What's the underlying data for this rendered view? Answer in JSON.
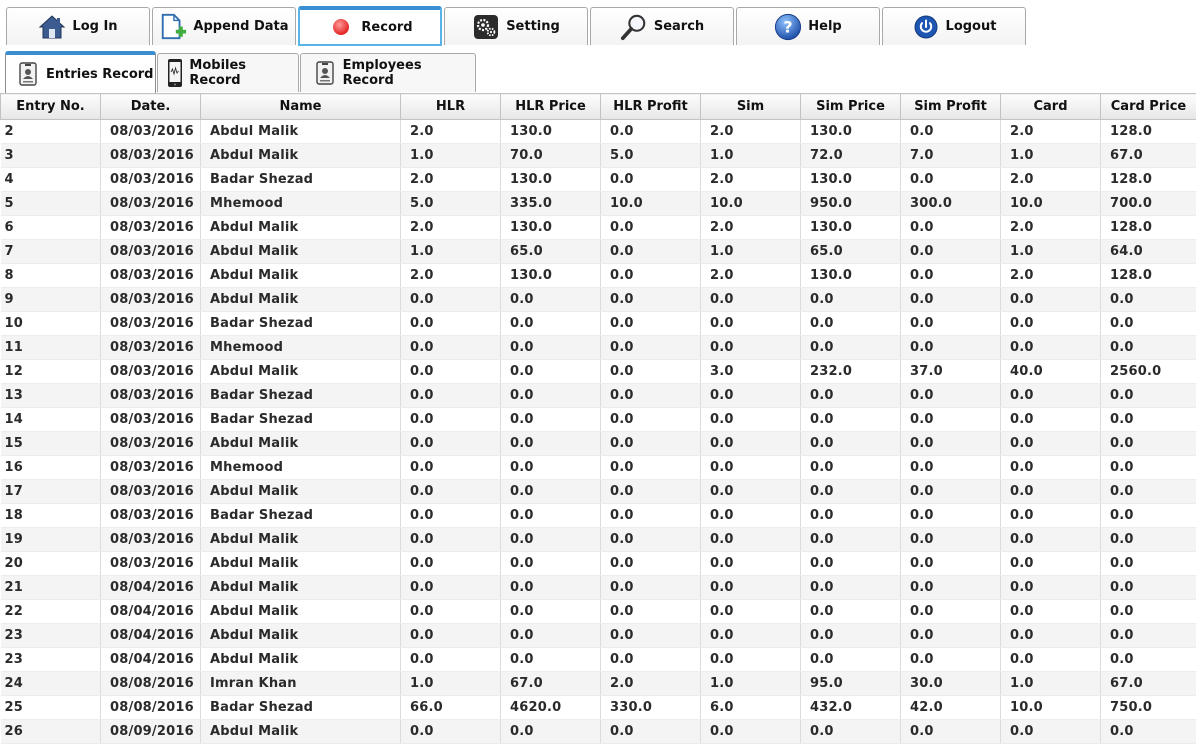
{
  "toolbar": {
    "buttons": [
      {
        "id": "login",
        "label": "Log In",
        "icon": "home-icon"
      },
      {
        "id": "append",
        "label": "Append Data",
        "icon": "document-add-icon"
      },
      {
        "id": "record",
        "label": "Record",
        "icon": "record-dot-icon",
        "active": true
      },
      {
        "id": "setting",
        "label": "Setting",
        "icon": "gears-icon"
      },
      {
        "id": "search",
        "label": "Search",
        "icon": "magnifier-icon"
      },
      {
        "id": "help",
        "label": "Help",
        "icon": "help-icon"
      },
      {
        "id": "logout",
        "label": "Logout",
        "icon": "power-icon"
      }
    ]
  },
  "subtabs": [
    {
      "id": "entries",
      "label": "Entries Record",
      "icon": "id-card-icon",
      "active": true
    },
    {
      "id": "mobiles",
      "label": "Mobiles Record",
      "icon": "mobile-phone-icon"
    },
    {
      "id": "employees",
      "label": "Employees Record",
      "icon": "id-card-icon"
    }
  ],
  "table": {
    "columns": [
      "Entry No.",
      "Date.",
      "Name",
      "HLR",
      "HLR Price",
      "HLR Profit",
      "Sim",
      "Sim Price",
      "Sim Profit",
      "Card",
      "Card Price"
    ],
    "rows": [
      [
        "2",
        "08/03/2016",
        "Abdul Malik",
        "2.0",
        "130.0",
        "0.0",
        "2.0",
        "130.0",
        "0.0",
        "2.0",
        "128.0"
      ],
      [
        "3",
        "08/03/2016",
        "Abdul Malik",
        "1.0",
        "70.0",
        "5.0",
        "1.0",
        "72.0",
        "7.0",
        "1.0",
        "67.0"
      ],
      [
        "4",
        "08/03/2016",
        "Badar Shezad",
        "2.0",
        "130.0",
        "0.0",
        "2.0",
        "130.0",
        "0.0",
        "2.0",
        "128.0"
      ],
      [
        "5",
        "08/03/2016",
        "Mhemood",
        "5.0",
        "335.0",
        "10.0",
        "10.0",
        "950.0",
        "300.0",
        "10.0",
        "700.0"
      ],
      [
        "6",
        "08/03/2016",
        "Abdul Malik",
        "2.0",
        "130.0",
        "0.0",
        "2.0",
        "130.0",
        "0.0",
        "2.0",
        "128.0"
      ],
      [
        "7",
        "08/03/2016",
        "Abdul Malik",
        "1.0",
        "65.0",
        "0.0",
        "1.0",
        "65.0",
        "0.0",
        "1.0",
        "64.0"
      ],
      [
        "8",
        "08/03/2016",
        "Abdul Malik",
        "2.0",
        "130.0",
        "0.0",
        "2.0",
        "130.0",
        "0.0",
        "2.0",
        "128.0"
      ],
      [
        "9",
        "08/03/2016",
        "Abdul Malik",
        "0.0",
        "0.0",
        "0.0",
        "0.0",
        "0.0",
        "0.0",
        "0.0",
        "0.0"
      ],
      [
        "10",
        "08/03/2016",
        "Badar Shezad",
        "0.0",
        "0.0",
        "0.0",
        "0.0",
        "0.0",
        "0.0",
        "0.0",
        "0.0"
      ],
      [
        "11",
        "08/03/2016",
        "Mhemood",
        "0.0",
        "0.0",
        "0.0",
        "0.0",
        "0.0",
        "0.0",
        "0.0",
        "0.0"
      ],
      [
        "12",
        "08/03/2016",
        "Abdul Malik",
        "0.0",
        "0.0",
        "0.0",
        "3.0",
        "232.0",
        "37.0",
        "40.0",
        "2560.0"
      ],
      [
        "13",
        "08/03/2016",
        "Badar Shezad",
        "0.0",
        "0.0",
        "0.0",
        "0.0",
        "0.0",
        "0.0",
        "0.0",
        "0.0"
      ],
      [
        "14",
        "08/03/2016",
        "Badar Shezad",
        "0.0",
        "0.0",
        "0.0",
        "0.0",
        "0.0",
        "0.0",
        "0.0",
        "0.0"
      ],
      [
        "15",
        "08/03/2016",
        "Abdul Malik",
        "0.0",
        "0.0",
        "0.0",
        "0.0",
        "0.0",
        "0.0",
        "0.0",
        "0.0"
      ],
      [
        "16",
        "08/03/2016",
        "Mhemood",
        "0.0",
        "0.0",
        "0.0",
        "0.0",
        "0.0",
        "0.0",
        "0.0",
        "0.0"
      ],
      [
        "17",
        "08/03/2016",
        "Abdul Malik",
        "0.0",
        "0.0",
        "0.0",
        "0.0",
        "0.0",
        "0.0",
        "0.0",
        "0.0"
      ],
      [
        "18",
        "08/03/2016",
        "Badar Shezad",
        "0.0",
        "0.0",
        "0.0",
        "0.0",
        "0.0",
        "0.0",
        "0.0",
        "0.0"
      ],
      [
        "19",
        "08/03/2016",
        "Abdul Malik",
        "0.0",
        "0.0",
        "0.0",
        "0.0",
        "0.0",
        "0.0",
        "0.0",
        "0.0"
      ],
      [
        "20",
        "08/03/2016",
        "Abdul Malik",
        "0.0",
        "0.0",
        "0.0",
        "0.0",
        "0.0",
        "0.0",
        "0.0",
        "0.0"
      ],
      [
        "21",
        "08/04/2016",
        "Abdul Malik",
        "0.0",
        "0.0",
        "0.0",
        "0.0",
        "0.0",
        "0.0",
        "0.0",
        "0.0"
      ],
      [
        "22",
        "08/04/2016",
        "Abdul Malik",
        "0.0",
        "0.0",
        "0.0",
        "0.0",
        "0.0",
        "0.0",
        "0.0",
        "0.0"
      ],
      [
        "23",
        "08/04/2016",
        "Abdul Malik",
        "0.0",
        "0.0",
        "0.0",
        "0.0",
        "0.0",
        "0.0",
        "0.0",
        "0.0"
      ],
      [
        "23",
        "08/04/2016",
        "Abdul Malik",
        "0.0",
        "0.0",
        "0.0",
        "0.0",
        "0.0",
        "0.0",
        "0.0",
        "0.0"
      ],
      [
        "24",
        "08/08/2016",
        "Imran Khan",
        "1.0",
        "67.0",
        "2.0",
        "1.0",
        "95.0",
        "30.0",
        "1.0",
        "67.0"
      ],
      [
        "25",
        "08/08/2016",
        "Badar Shezad",
        "66.0",
        "4620.0",
        "330.0",
        "6.0",
        "432.0",
        "42.0",
        "10.0",
        "750.0"
      ],
      [
        "26",
        "08/09/2016",
        "Abdul Malik",
        "0.0",
        "0.0",
        "0.0",
        "0.0",
        "0.0",
        "0.0",
        "0.0",
        "0.0"
      ]
    ]
  }
}
